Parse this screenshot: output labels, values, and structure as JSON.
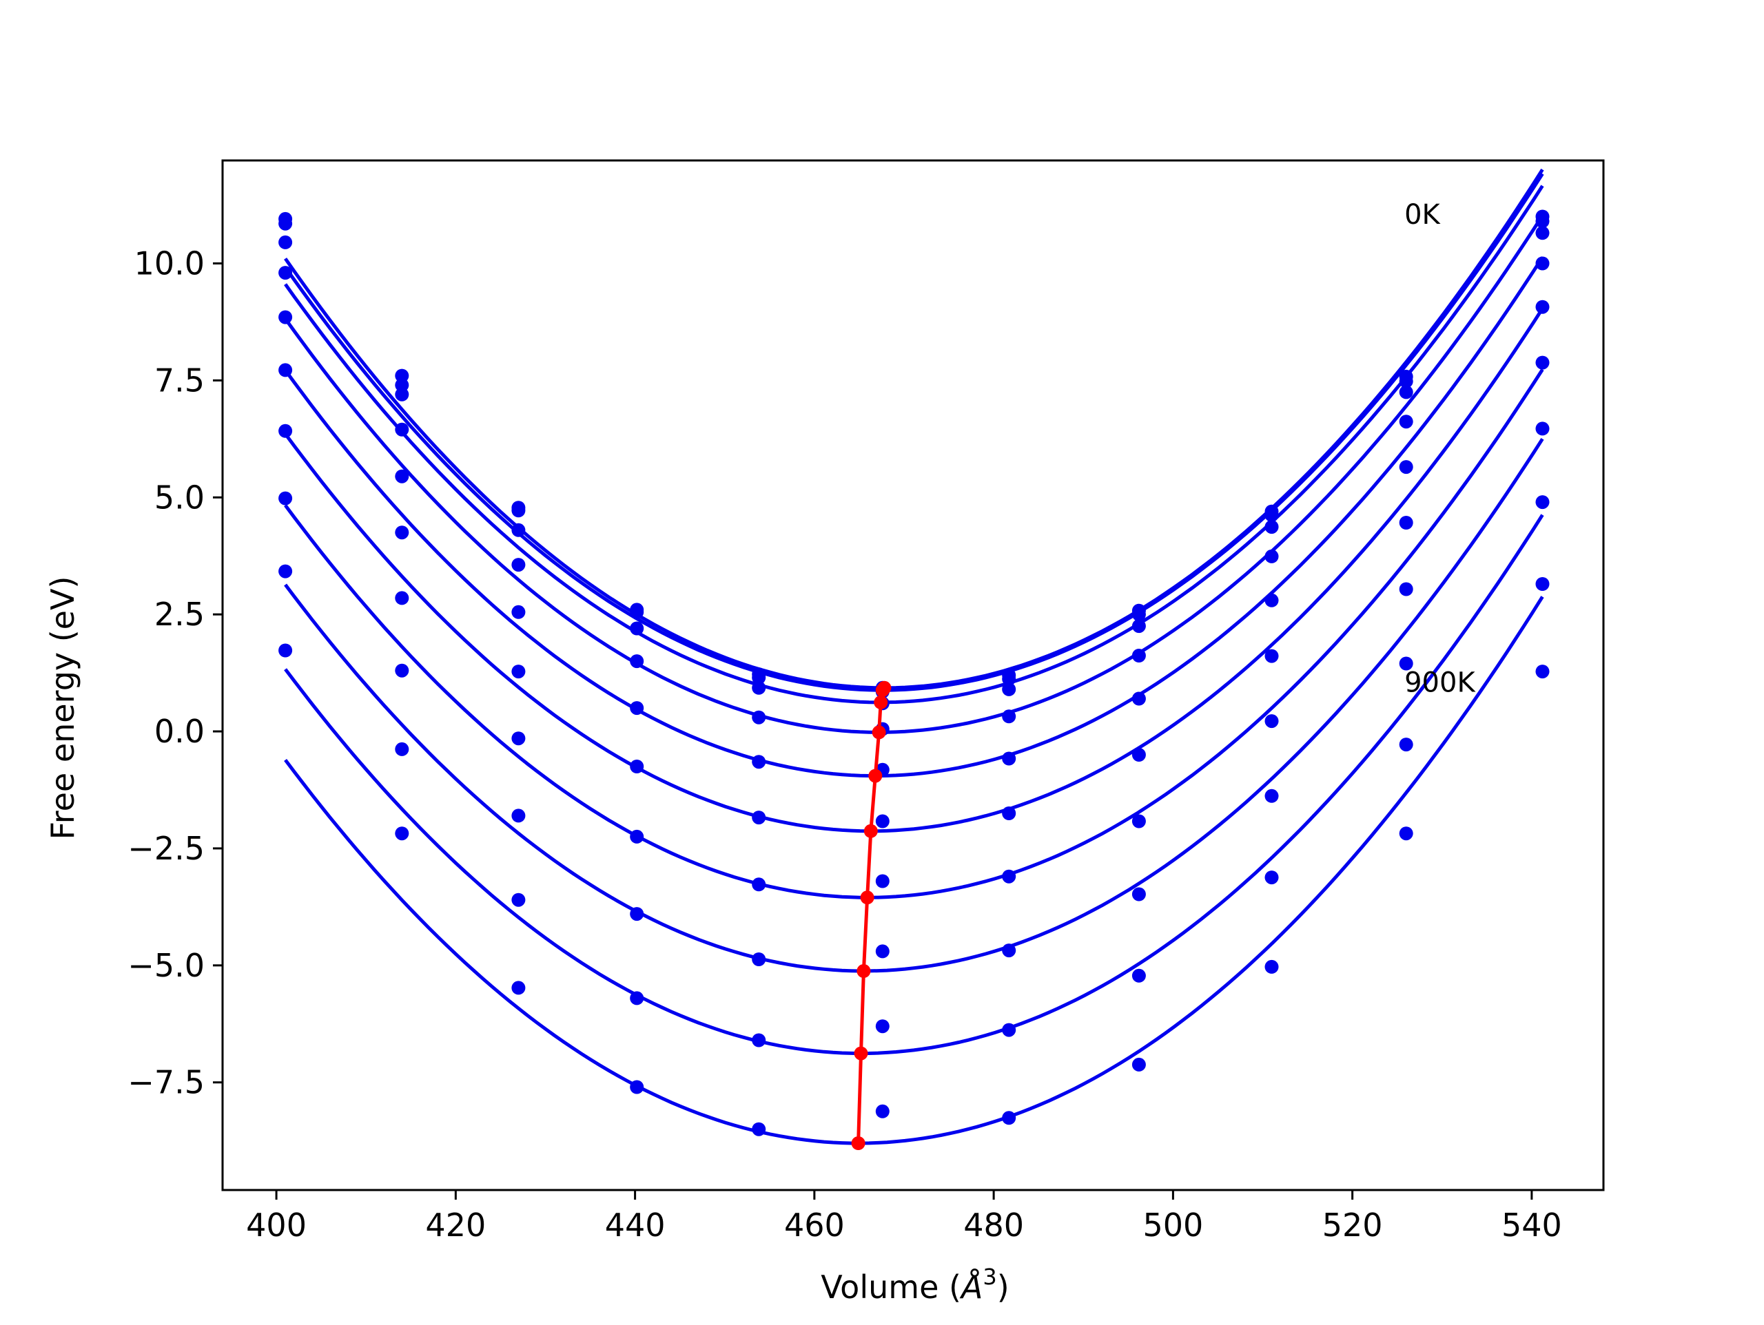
{
  "chart_data": {
    "type": "scatter",
    "title": "",
    "xlabel": "Volume (",
    "xlabel_symbol": "Å",
    "xlabel_sup": "3",
    "xlabel_end": ")",
    "ylabel": "Free energy (eV)",
    "xlim": [
      394,
      548
    ],
    "ylim": [
      -9.8,
      12.2
    ],
    "xticks": [
      400,
      420,
      440,
      460,
      480,
      500,
      520,
      540
    ],
    "xtick_labels": [
      "400",
      "420",
      "440",
      "460",
      "480",
      "500",
      "520",
      "540"
    ],
    "yticks": [
      10.0,
      7.5,
      5.0,
      2.5,
      0.0,
      -2.5,
      -5.0,
      -7.5
    ],
    "ytick_labels": [
      "10.0",
      "7.5",
      "5.0",
      "2.5",
      "0.0",
      "−2.5",
      "−5.0",
      "−7.5"
    ],
    "grid": false,
    "annotations": [
      {
        "text": "0K",
        "x": 525.8,
        "y": 11.05
      },
      {
        "text": "900K",
        "x": 525.8,
        "y": 1.05
      }
    ],
    "colors": {
      "fit": "#0000ee",
      "points": "#0000ee",
      "minima": "#ff0000",
      "axes": "#000000"
    },
    "x_points": [
      401,
      414,
      427,
      440.2,
      453.8,
      467.6,
      481.7,
      496.2,
      511,
      526,
      541.2
    ],
    "series": [
      {
        "values": [
          10.95,
          7.6,
          4.78,
          2.6,
          1.22,
          0.93,
          1.2,
          2.58,
          4.7,
          7.58,
          11.0
        ],
        "fit": {
          "x0": 467.8,
          "emin": 0.93
        }
      },
      {
        "values": [
          10.85,
          7.4,
          4.72,
          2.55,
          1.15,
          0.85,
          1.12,
          2.5,
          4.62,
          7.48,
          10.9
        ],
        "fit": {
          "x0": 467.6,
          "emin": 0.88
        }
      },
      {
        "values": [
          10.45,
          7.2,
          4.3,
          2.2,
          0.93,
          0.6,
          0.9,
          2.25,
          4.37,
          7.25,
          10.65
        ],
        "fit": {
          "x0": 467.4,
          "emin": 0.62
        }
      },
      {
        "values": [
          9.8,
          6.45,
          3.56,
          1.5,
          0.3,
          0.05,
          0.32,
          1.62,
          3.74,
          6.62,
          10.0
        ],
        "fit": {
          "x0": 467.2,
          "emin": -0.02
        }
      },
      {
        "values": [
          8.85,
          5.45,
          2.55,
          0.5,
          -0.65,
          -0.82,
          -0.58,
          0.7,
          2.8,
          5.65,
          9.07
        ],
        "fit": {
          "x0": 466.8,
          "emin": -0.95
        }
      },
      {
        "values": [
          7.72,
          4.25,
          1.28,
          -0.75,
          -1.84,
          -1.92,
          -1.75,
          -0.5,
          1.61,
          4.46,
          7.88
        ],
        "fit": {
          "x0": 466.3,
          "emin": -2.13
        }
      },
      {
        "values": [
          6.42,
          2.85,
          -0.15,
          -2.25,
          -3.27,
          -3.2,
          -3.1,
          -1.92,
          0.22,
          3.04,
          6.47
        ],
        "fit": {
          "x0": 465.9,
          "emin": -3.55
        }
      },
      {
        "values": [
          4.98,
          1.3,
          -1.8,
          -3.9,
          -4.87,
          -4.7,
          -4.68,
          -3.48,
          -1.38,
          1.45,
          4.9
        ],
        "fit": {
          "x0": 465.5,
          "emin": -5.12
        }
      },
      {
        "values": [
          3.42,
          -0.38,
          -3.6,
          -5.7,
          -6.6,
          -6.3,
          -6.38,
          -5.22,
          -3.12,
          -0.28,
          3.15
        ],
        "fit": {
          "x0": 465.2,
          "emin": -6.88
        }
      },
      {
        "values": [
          1.73,
          -2.18,
          -5.48,
          -7.6,
          -8.5,
          -8.12,
          -8.26,
          -7.12,
          -5.03,
          -2.18,
          1.28
        ],
        "fit": {
          "x0": 464.9,
          "emin": -8.8
        }
      }
    ],
    "minima_line": {
      "x": [
        467.8,
        467.6,
        467.4,
        467.2,
        466.8,
        466.3,
        465.9,
        465.5,
        465.2,
        464.9
      ],
      "y": [
        0.93,
        0.88,
        0.62,
        -0.02,
        -0.95,
        -2.13,
        -3.55,
        -5.12,
        -6.88,
        -8.8
      ]
    }
  }
}
